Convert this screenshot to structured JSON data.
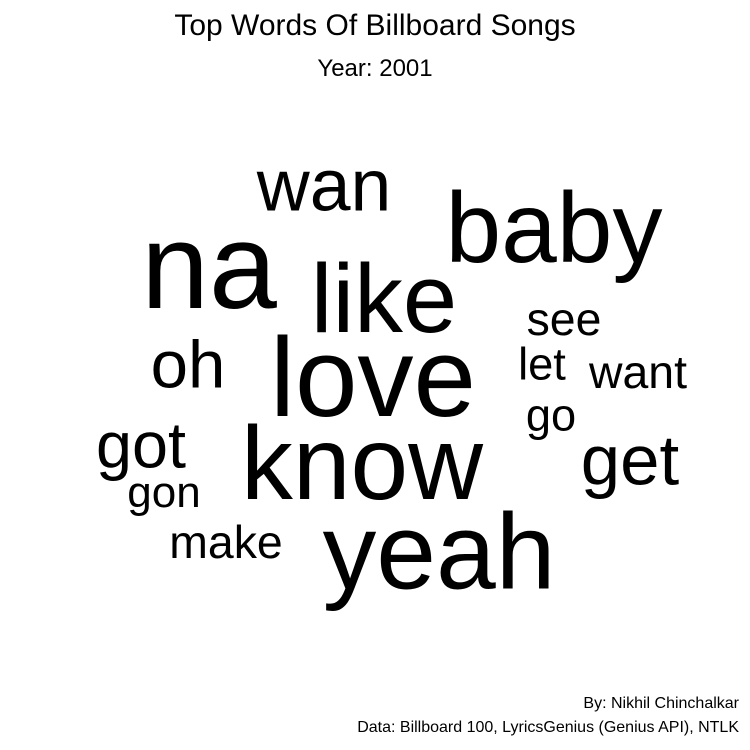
{
  "title": "Top Words Of Billboard Songs",
  "subtitle": "Year: 2001",
  "caption": {
    "author": "By: Nikhil Chinchalkar",
    "source": "Data: Billboard 100, LyricsGenius (Genius API), NTLK"
  },
  "chart_data": {
    "type": "wordcloud",
    "title": "Top Words Of Billboard Songs",
    "subtitle": "Year: 2001",
    "text_color": "#000000",
    "words": [
      {
        "text": "na",
        "weight": 100
      },
      {
        "text": "love",
        "weight": 92
      },
      {
        "text": "yeah",
        "weight": 88
      },
      {
        "text": "know",
        "weight": 85
      },
      {
        "text": "baby",
        "weight": 82
      },
      {
        "text": "like",
        "weight": 80
      },
      {
        "text": "wan",
        "weight": 60
      },
      {
        "text": "get",
        "weight": 58
      },
      {
        "text": "oh",
        "weight": 55
      },
      {
        "text": "got",
        "weight": 53
      },
      {
        "text": "see",
        "weight": 38
      },
      {
        "text": "want",
        "weight": 38
      },
      {
        "text": "make",
        "weight": 38
      },
      {
        "text": "let",
        "weight": 37
      },
      {
        "text": "go",
        "weight": 37
      },
      {
        "text": "gon",
        "weight": 36
      }
    ]
  }
}
